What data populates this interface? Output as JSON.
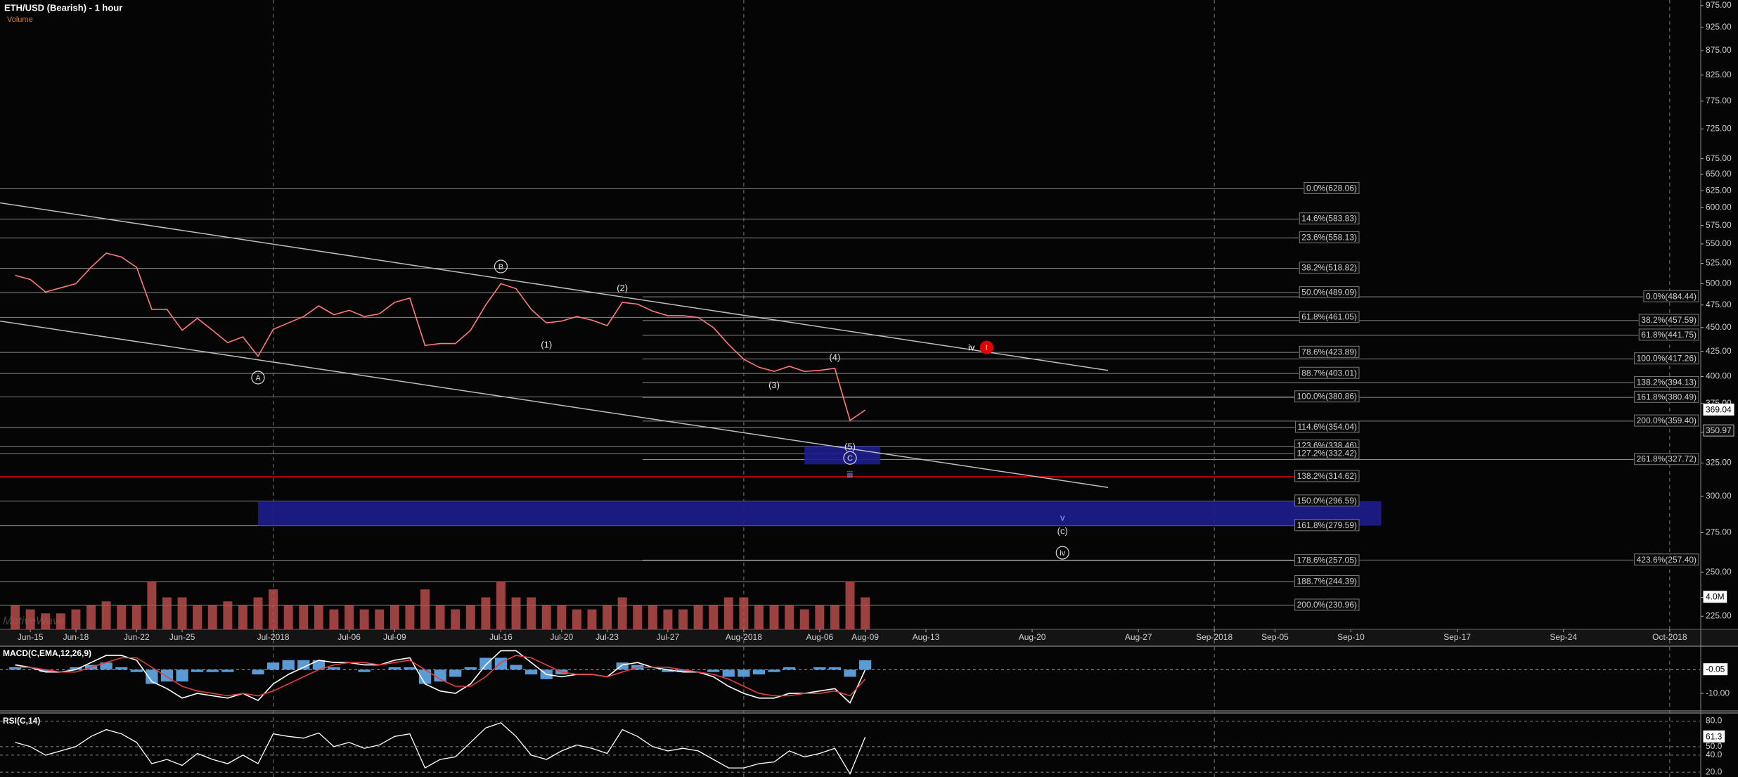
{
  "chart_data": {
    "type": "line",
    "title": "ETH/USD (Bearish) - 1 hour",
    "subtitle": "Volume",
    "watermark": "MotiveWave",
    "x": [
      "2018-06-14",
      "2018-06-15",
      "2018-06-16",
      "2018-06-17",
      "2018-06-18",
      "2018-06-19",
      "2018-06-20",
      "2018-06-21",
      "2018-06-22",
      "2018-06-23",
      "2018-06-24",
      "2018-06-25",
      "2018-06-26",
      "2018-06-27",
      "2018-06-28",
      "2018-06-29",
      "2018-06-30",
      "2018-07-01",
      "2018-07-02",
      "2018-07-03",
      "2018-07-04",
      "2018-07-05",
      "2018-07-06",
      "2018-07-07",
      "2018-07-08",
      "2018-07-09",
      "2018-07-10",
      "2018-07-11",
      "2018-07-12",
      "2018-07-13",
      "2018-07-14",
      "2018-07-15",
      "2018-07-16",
      "2018-07-17",
      "2018-07-18",
      "2018-07-19",
      "2018-07-20",
      "2018-07-21",
      "2018-07-22",
      "2018-07-23",
      "2018-07-24",
      "2018-07-25",
      "2018-07-26",
      "2018-07-27",
      "2018-07-28",
      "2018-07-29",
      "2018-07-30",
      "2018-07-31",
      "2018-08-01",
      "2018-08-02",
      "2018-08-03",
      "2018-08-04",
      "2018-08-05",
      "2018-08-06",
      "2018-08-07",
      "2018-08-08",
      "2018-08-09"
    ],
    "series": [
      {
        "color": "#ff7a7a",
        "values": [
          510,
          505,
          490,
          495,
          500,
          520,
          538,
          533,
          520,
          470,
          470,
          447,
          460,
          447,
          434,
          440,
          420,
          448,
          455,
          462,
          474,
          464,
          469,
          462,
          465,
          478,
          483,
          431,
          433,
          433,
          447,
          475,
          500,
          494,
          470,
          455,
          457,
          462,
          458,
          452,
          478,
          476,
          468,
          463,
          463,
          461,
          450,
          432,
          417,
          409,
          405,
          410,
          405,
          406,
          408,
          360,
          369.04
        ]
      }
    ],
    "xlim": [
      "2018-06-13",
      "2018-10-03"
    ],
    "xticks": [
      {
        "value": "2018-06-15",
        "label": "Jun-15"
      },
      {
        "value": "2018-06-18",
        "label": "Jun-18"
      },
      {
        "value": "2018-06-22",
        "label": "Jun-22"
      },
      {
        "value": "2018-06-25",
        "label": "Jun-25"
      },
      {
        "value": "2018-07-01",
        "label": "Jul-2018"
      },
      {
        "value": "2018-07-06",
        "label": "Jul-06"
      },
      {
        "value": "2018-07-09",
        "label": "Jul-09"
      },
      {
        "value": "2018-07-16",
        "label": "Jul-16"
      },
      {
        "value": "2018-07-20",
        "label": "Jul-20"
      },
      {
        "value": "2018-07-23",
        "label": "Jul-23"
      },
      {
        "value": "2018-07-27",
        "label": "Jul-27"
      },
      {
        "value": "2018-08-01",
        "label": "Aug-2018"
      },
      {
        "value": "2018-08-06",
        "label": "Aug-06"
      },
      {
        "value": "2018-08-09",
        "label": "Aug-09"
      },
      {
        "value": "2018-08-13",
        "label": "Aug-13"
      },
      {
        "value": "2018-08-20",
        "label": "Aug-20"
      },
      {
        "value": "2018-08-27",
        "label": "Aug-27"
      },
      {
        "value": "2018-09-01",
        "label": "Sep-2018"
      },
      {
        "value": "2018-09-05",
        "label": "Sep-05"
      },
      {
        "value": "2018-09-10",
        "label": "Sep-10"
      },
      {
        "value": "2018-09-17",
        "label": "Sep-17"
      },
      {
        "value": "2018-09-24",
        "label": "Sep-24"
      },
      {
        "value": "2018-10-01",
        "label": "Oct-2018"
      }
    ],
    "ylim": [
      218,
      988
    ],
    "log_scale": true,
    "yticks": [
      {
        "value": 975,
        "label": "975.00"
      },
      {
        "value": 925,
        "label": "925.00"
      },
      {
        "value": 875,
        "label": "875.00"
      },
      {
        "value": 825,
        "label": "825.00"
      },
      {
        "value": 775,
        "label": "775.00"
      },
      {
        "value": 725,
        "label": "725.00"
      },
      {
        "value": 675,
        "label": "675.00"
      },
      {
        "value": 650,
        "label": "650.00"
      },
      {
        "value": 625,
        "label": "625.00"
      },
      {
        "value": 600,
        "label": "600.00"
      },
      {
        "value": 575,
        "label": "575.00"
      },
      {
        "value": 550,
        "label": "550.00"
      },
      {
        "value": 525,
        "label": "525.00"
      },
      {
        "value": 500,
        "label": "500.00"
      },
      {
        "value": 475,
        "label": "475.00"
      },
      {
        "value": 450,
        "label": "450.00"
      },
      {
        "value": 425,
        "label": "425.00"
      },
      {
        "value": 400,
        "label": "400.00"
      },
      {
        "value": 375,
        "label": "375.00"
      },
      {
        "value": 350,
        "label": "350.00"
      },
      {
        "value": 325,
        "label": "325.00"
      },
      {
        "value": 300,
        "label": "300.00"
      },
      {
        "value": 275,
        "label": "275.00"
      },
      {
        "value": 250,
        "label": "250.00"
      },
      {
        "value": 225,
        "label": "225.00"
      }
    ],
    "price_marker": 350.97,
    "fib_left": {
      "color": "#8a8a8a",
      "levels": [
        {
          "value": 628.06,
          "label": "0.0%(628.06)"
        },
        {
          "value": 583.83,
          "label": "14.6%(583.83)"
        },
        {
          "value": 558.13,
          "label": "23.6%(558.13)"
        },
        {
          "value": 518.82,
          "label": "38.2%(518.82)"
        },
        {
          "value": 489.09,
          "label": "50.0%(489.09)"
        },
        {
          "value": 461.05,
          "label": "61.8%(461.05)"
        },
        {
          "value": 423.89,
          "label": "78.6%(423.89)"
        },
        {
          "value": 403.01,
          "label": "88.7%(403.01)"
        },
        {
          "value": 380.86,
          "label": "100.0%(380.86)"
        },
        {
          "value": 354.04,
          "label": "114.6%(354.04)"
        },
        {
          "value": 338.46,
          "label": "123.6%(338.46)"
        },
        {
          "value": 332.42,
          "label": "127.2%(332.42)"
        },
        {
          "value": 314.62,
          "label": "138.2%(314.62)",
          "color": "#c00000"
        },
        {
          "value": 296.59,
          "label": "150.0%(296.59)"
        },
        {
          "value": 279.59,
          "label": "161.8%(279.59)"
        },
        {
          "value": 257.05,
          "label": "178.6%(257.05)"
        },
        {
          "value": 244.39,
          "label": "188.7%(244.39)"
        },
        {
          "value": 230.96,
          "label": "200.0%(230.96)"
        }
      ]
    },
    "fib_right": {
      "color": "#8a8a8a",
      "levels": [
        {
          "value": 484.44,
          "label": "0.0%(484.44)"
        },
        {
          "value": 457.59,
          "label": "38.2%(457.59)"
        },
        {
          "value": 441.75,
          "label": "61.8%(441.75)"
        },
        {
          "value": 417.26,
          "label": "100.0%(417.26)"
        },
        {
          "value": 394.13,
          "label": "138.2%(394.13)"
        },
        {
          "value": 380.49,
          "label": "161.8%(380.49)"
        },
        {
          "value": 359.4,
          "label": "200.0%(359.40)"
        },
        {
          "value": 327.72,
          "label": "261.8%(327.72)"
        },
        {
          "value": 257.4,
          "label": "423.6%(257.40)"
        }
      ]
    },
    "zones": [
      {
        "color": "#1c1c8c",
        "x": [
          "2018-06-30",
          "2018-09-12"
        ],
        "y": [
          296.59,
          279.59
        ]
      },
      {
        "color": "#1c1c8c",
        "x": [
          "2018-08-05",
          "2018-08-10"
        ],
        "y": [
          338.46,
          324
        ]
      }
    ],
    "trendlines": [
      {
        "color": "#bdbdbd",
        "x": [
          "2018-06-13",
          "2018-08-25"
        ],
        "y": [
          607,
          406
        ]
      },
      {
        "color": "#bdbdbd",
        "x": [
          "2018-06-13",
          "2018-08-25"
        ],
        "y": [
          457,
          306.5
        ]
      }
    ],
    "annotations": [
      {
        "text": "A",
        "x": "2018-06-30",
        "y": 399,
        "circled": true
      },
      {
        "text": "B",
        "x": "2018-07-16",
        "y": 521,
        "circled": true
      },
      {
        "text": "(1)",
        "x": "2018-07-19",
        "y": 432
      },
      {
        "text": "(2)",
        "x": "2018-07-24",
        "y": 495
      },
      {
        "text": "(3)",
        "x": "2018-08-03",
        "y": 392
      },
      {
        "text": "(4)",
        "x": "2018-08-07",
        "y": 419
      },
      {
        "text": "(5)",
        "x": "2018-08-08",
        "y": 338
      },
      {
        "text": "C",
        "x": "2018-08-08",
        "y": 329,
        "circled": true
      },
      {
        "text": "iii",
        "x": "2018-08-08",
        "y": 316,
        "color": "#8fa8ff"
      },
      {
        "text": "iv",
        "x": "2018-08-16",
        "y": 429,
        "color": "#ffffff"
      },
      {
        "text": "!",
        "x": "2018-08-17",
        "y": 429,
        "circled": true,
        "fill": "#e00000"
      },
      {
        "text": "v",
        "x": "2018-08-22",
        "y": 285,
        "color": "#8fa8ff"
      },
      {
        "text": "(c)",
        "x": "2018-08-22",
        "y": 276
      },
      {
        "text": "iv",
        "x": "2018-08-22",
        "y": 262,
        "circled": true
      }
    ],
    "volume": {
      "color": "#c0504d",
      "ylim": [
        0,
        4400000
      ],
      "ticks": [
        {
          "value": 4000000,
          "label": "4.0M"
        }
      ],
      "values": [
        3000000,
        2500000,
        2000000,
        2000000,
        2500000,
        3000000,
        3500000,
        3000000,
        3000000,
        6000000,
        4000000,
        4000000,
        3000000,
        3000000,
        3500000,
        3000000,
        4000000,
        5000000,
        3000000,
        3000000,
        3000000,
        2500000,
        3000000,
        2500000,
        2500000,
        3000000,
        3000000,
        5000000,
        3000000,
        2500000,
        3000000,
        4000000,
        6000000,
        4000000,
        4000000,
        3000000,
        3000000,
        2500000,
        2500000,
        3000000,
        4000000,
        3000000,
        3000000,
        2500000,
        2500000,
        3000000,
        3000000,
        4000000,
        4000000,
        3000000,
        3000000,
        3000000,
        2500000,
        3000000,
        3000000,
        6000000,
        4000000
      ]
    },
    "macd": {
      "title": "MACD(C,EMA,12,26,9)",
      "ylim": [
        -16.5,
        9
      ],
      "yticks": [
        {
          "value": -10,
          "label": "-10.00"
        }
      ],
      "series": [
        {
          "color": "#ffffff",
          "values": [
            2,
            1,
            -1,
            -1,
            0,
            3,
            6,
            6,
            4,
            -5,
            -8,
            -12,
            -10,
            -11,
            -12,
            -10,
            -13,
            -6,
            -2,
            1,
            4,
            3,
            3,
            2,
            2,
            4,
            5,
            -6,
            -9,
            -10,
            -6,
            2,
            8,
            8,
            3,
            -2,
            -3,
            -2,
            -2,
            -3,
            2,
            3,
            1,
            0,
            -1,
            -1,
            -3,
            -7,
            -10,
            -12,
            -12,
            -10,
            -10,
            -9,
            -8,
            -14,
            -0.05
          ]
        },
        {
          "color": "#e04040",
          "values": [
            1,
            1,
            0,
            -1,
            -1,
            1,
            3,
            5,
            5,
            1,
            -3,
            -7,
            -9,
            -10,
            -11,
            -10,
            -11,
            -9,
            -6,
            -3,
            0,
            2,
            3,
            3,
            2,
            3,
            4,
            0,
            -4,
            -7,
            -7,
            -3,
            3,
            6,
            5,
            2,
            -1,
            -2,
            -2,
            -3,
            -1,
            1,
            1,
            1,
            0,
            -1,
            -2,
            -4,
            -7,
            -10,
            -11,
            -11,
            -10,
            -10,
            -9,
            -11,
            -4
          ]
        }
      ],
      "histogram": {
        "color": "#5b9bd5",
        "values": [
          1,
          0,
          -1,
          0,
          1,
          2,
          3,
          1,
          -1,
          -6,
          -5,
          -5,
          -1,
          -1,
          -1,
          0,
          -2,
          3,
          4,
          4,
          4,
          1,
          0,
          -1,
          0,
          1,
          1,
          -6,
          -5,
          -3,
          1,
          5,
          5,
          2,
          -2,
          -4,
          -2,
          0,
          0,
          0,
          3,
          2,
          0,
          -1,
          -1,
          0,
          -1,
          -3,
          -3,
          -2,
          -1,
          1,
          0,
          1,
          1,
          -3,
          3.95
        ]
      }
    },
    "rsi": {
      "title": "RSI(C,14)",
      "ylim": [
        16,
        87
      ],
      "color": "#ffffff",
      "yticks": [
        {
          "value": 80,
          "label": "80.0"
        },
        {
          "value": 50,
          "label": "50.0"
        },
        {
          "value": 40,
          "label": "40.0"
        },
        {
          "value": 20,
          "label": "20.0"
        }
      ],
      "values": [
        55,
        50,
        40,
        45,
        50,
        62,
        70,
        65,
        55,
        30,
        35,
        28,
        42,
        35,
        30,
        40,
        30,
        65,
        62,
        60,
        66,
        50,
        55,
        48,
        52,
        62,
        65,
        25,
        35,
        38,
        55,
        72,
        78,
        62,
        40,
        35,
        45,
        52,
        48,
        42,
        70,
        62,
        50,
        45,
        48,
        45,
        35,
        25,
        25,
        30,
        32,
        45,
        38,
        42,
        48,
        18,
        61.3
      ]
    }
  }
}
